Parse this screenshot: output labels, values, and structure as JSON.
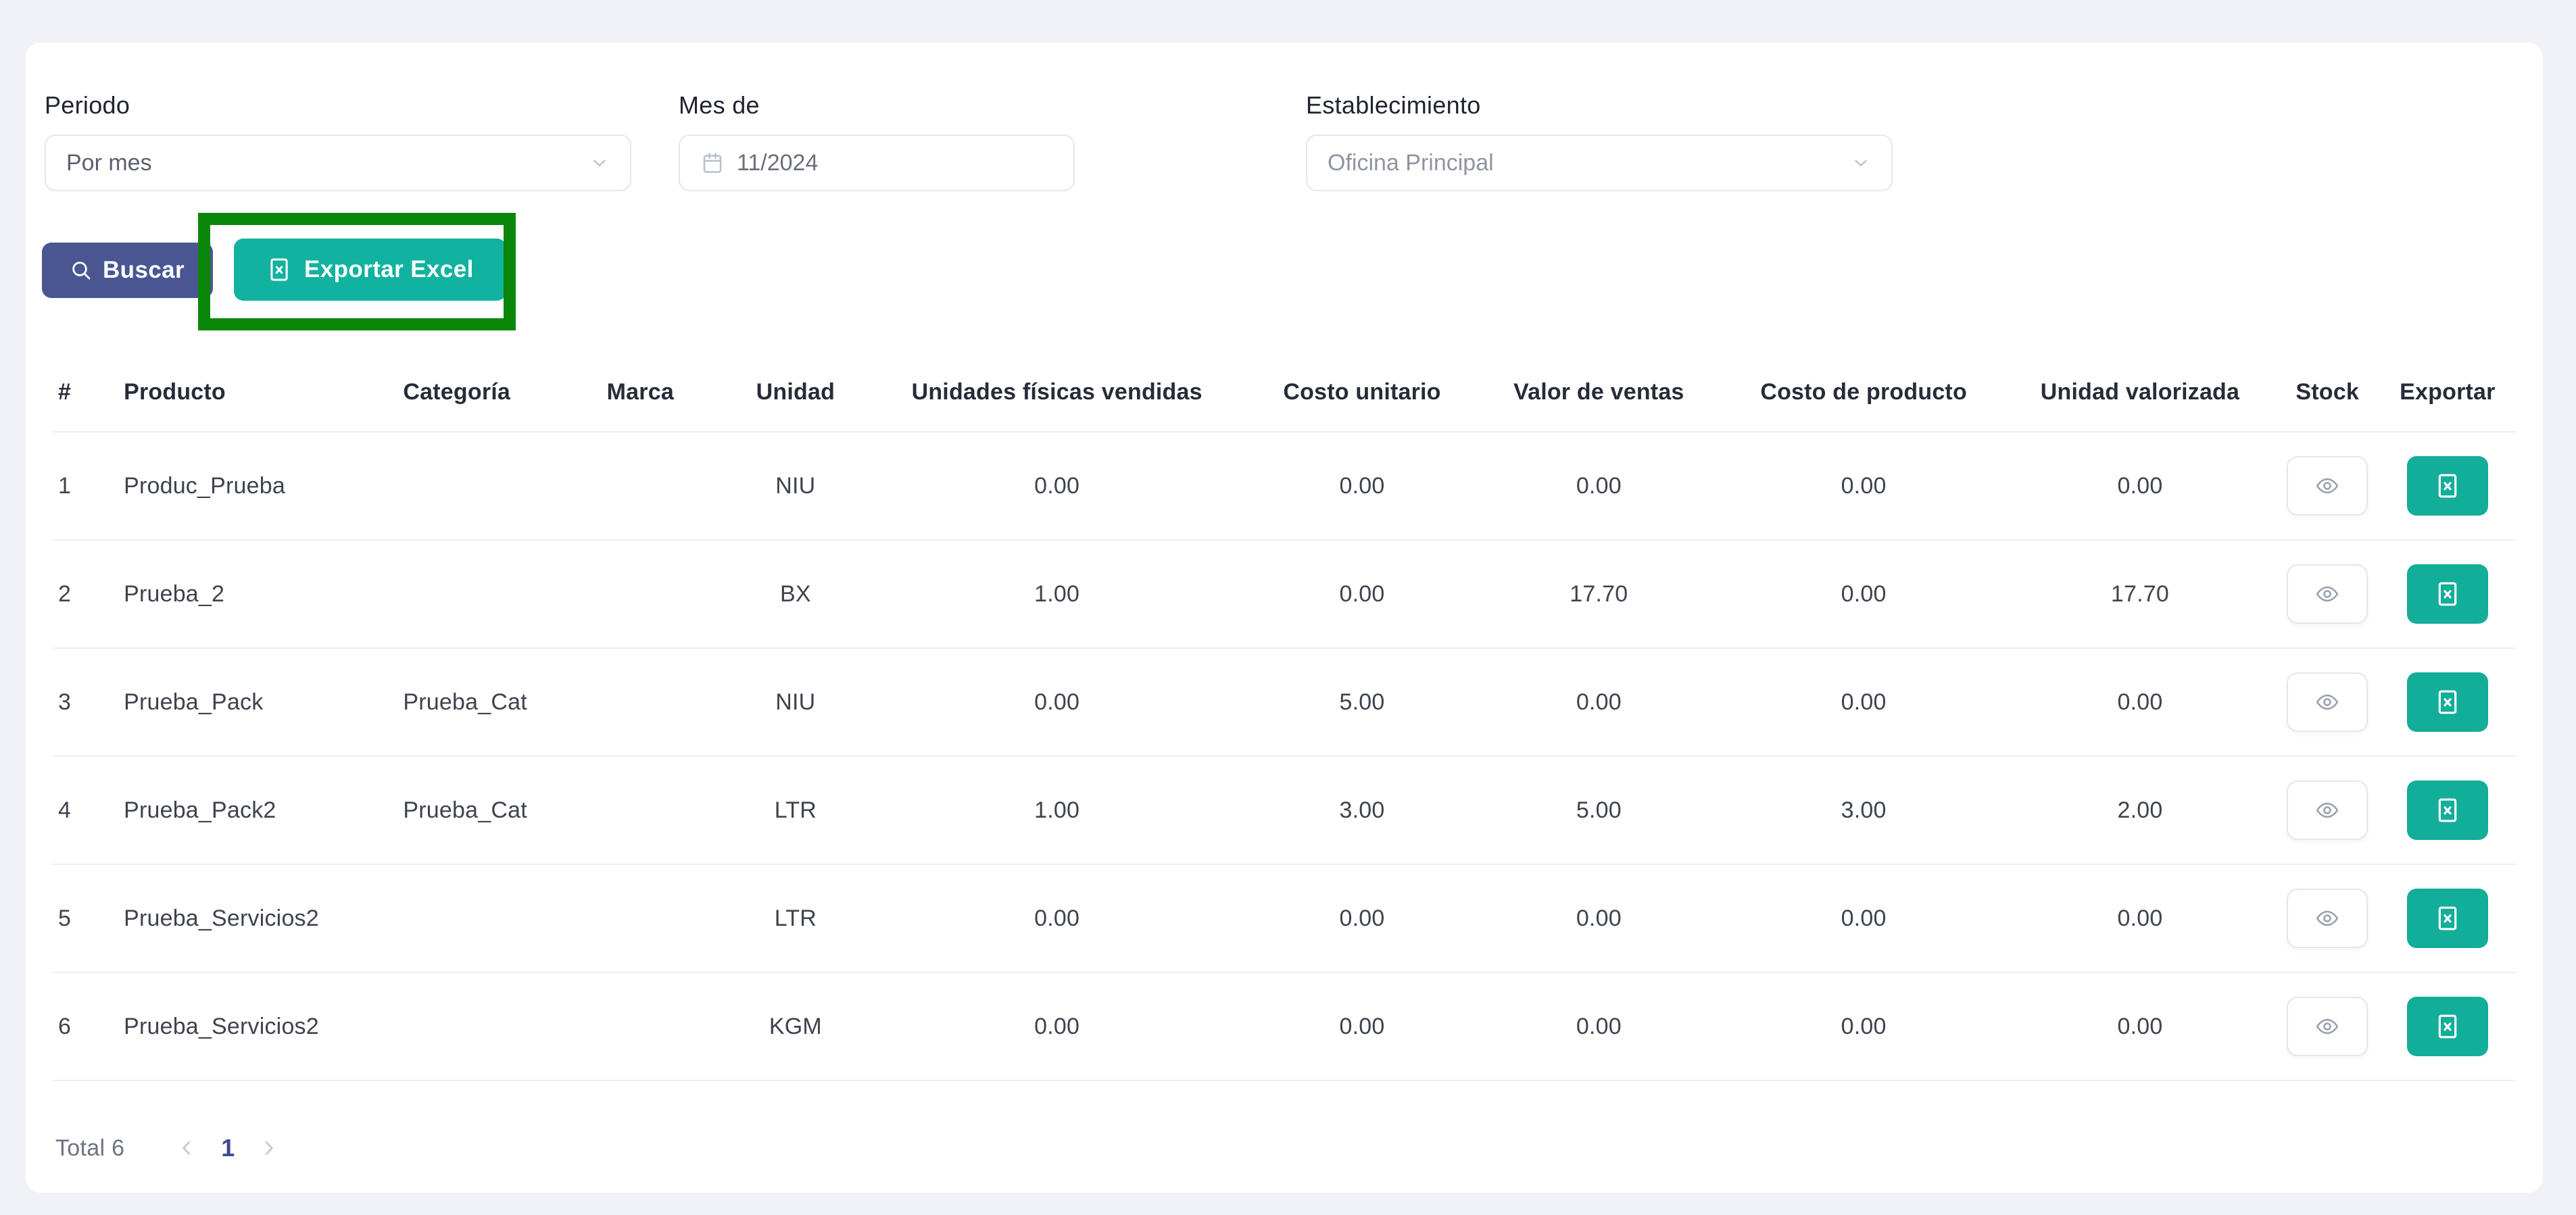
{
  "filters": {
    "periodo": {
      "label": "Periodo",
      "value": "Por mes"
    },
    "mes_de": {
      "label": "Mes de",
      "value": "11/2024"
    },
    "establecimiento": {
      "label": "Establecimiento",
      "value": "Oficina Principal"
    }
  },
  "buttons": {
    "buscar": "Buscar",
    "exportar_excel": "Exportar Excel"
  },
  "table": {
    "headers": [
      "#",
      "Producto",
      "Categoría",
      "Marca",
      "Unidad",
      "Unidades físicas vendidas",
      "Costo unitario",
      "Valor de ventas",
      "Costo de producto",
      "Unidad valorizada",
      "Stock",
      "Exportar"
    ],
    "rows": [
      {
        "num": "1",
        "producto": "Produc_Prueba",
        "categoria": "",
        "marca": "",
        "unidad": "NIU",
        "unidades_fisicas": "0.00",
        "costo_unitario": "0.00",
        "valor_ventas": "0.00",
        "costo_producto": "0.00",
        "unidad_valorizada": "0.00"
      },
      {
        "num": "2",
        "producto": "Prueba_2",
        "categoria": "",
        "marca": "",
        "unidad": "BX",
        "unidades_fisicas": "1.00",
        "costo_unitario": "0.00",
        "valor_ventas": "17.70",
        "costo_producto": "0.00",
        "unidad_valorizada": "17.70"
      },
      {
        "num": "3",
        "producto": "Prueba_Pack",
        "categoria": "Prueba_Cat",
        "marca": "",
        "unidad": "NIU",
        "unidades_fisicas": "0.00",
        "costo_unitario": "5.00",
        "valor_ventas": "0.00",
        "costo_producto": "0.00",
        "unidad_valorizada": "0.00"
      },
      {
        "num": "4",
        "producto": "Prueba_Pack2",
        "categoria": "Prueba_Cat",
        "marca": "",
        "unidad": "LTR",
        "unidades_fisicas": "1.00",
        "costo_unitario": "3.00",
        "valor_ventas": "5.00",
        "costo_producto": "3.00",
        "unidad_valorizada": "2.00"
      },
      {
        "num": "5",
        "producto": "Prueba_Servicios2",
        "categoria": "",
        "marca": "",
        "unidad": "LTR",
        "unidades_fisicas": "0.00",
        "costo_unitario": "0.00",
        "valor_ventas": "0.00",
        "costo_producto": "0.00",
        "unidad_valorizada": "0.00"
      },
      {
        "num": "6",
        "producto": "Prueba_Servicios2",
        "categoria": "",
        "marca": "",
        "unidad": "KGM",
        "unidades_fisicas": "0.00",
        "costo_unitario": "0.00",
        "valor_ventas": "0.00",
        "costo_producto": "0.00",
        "unidad_valorizada": "0.00"
      }
    ]
  },
  "pagination": {
    "total_label": "Total 6",
    "current_page": "1"
  },
  "icons": {
    "search": "magnifier",
    "excel_file": "excel-document",
    "calendar": "calendar",
    "chevron_down": "chevron-down",
    "eye": "eye",
    "chevron_left": "chevron-left",
    "chevron_right": "chevron-right"
  },
  "colors": {
    "page_bg": "#f1f2f8",
    "primary_indigo": "#4a5692",
    "accent_teal": "#12b2a0",
    "annotation_green": "#0a870a",
    "active_page_text": "#3b4a92"
  },
  "annotation": {
    "type": "highlight-box",
    "target": "exportar-excel-button"
  }
}
